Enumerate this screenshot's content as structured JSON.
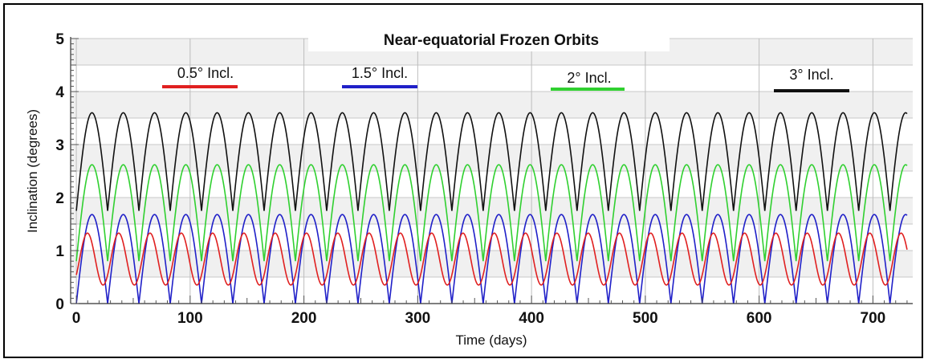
{
  "chart_data": {
    "type": "line",
    "title": "Near-equatorial Frozen Orbits",
    "xlabel": "Time (days)",
    "ylabel": "Inclination (degrees)",
    "xlim": [
      -5,
      735
    ],
    "ylim": [
      0,
      5
    ],
    "xticks": [
      "0",
      "100",
      "200",
      "300",
      "400",
      "500",
      "600",
      "700"
    ],
    "yticks": [
      "0",
      "1",
      "2",
      "3",
      "4",
      "5"
    ],
    "grid": true,
    "legend_position": "top",
    "series": [
      {
        "name": "0.5° Incl.",
        "color": "#e02020",
        "period_days": 27.5,
        "phase_days": -4,
        "min": 0.35,
        "max": 1.33,
        "shape": "sine",
        "start_day": 0,
        "end_day": 730
      },
      {
        "name": "1.5° Incl.",
        "color": "#2020c8",
        "period_days": 27.5,
        "phase_days": 0,
        "min": 0.0,
        "max": 1.68,
        "shape": "arch",
        "start_day": 0,
        "end_day": 730
      },
      {
        "name": "2° Incl.",
        "color": "#30d030",
        "period_days": 27.5,
        "phase_days": 0,
        "min": 0.8,
        "max": 2.62,
        "shape": "arch",
        "start_day": 0,
        "end_day": 730
      },
      {
        "name": "3° Incl.",
        "color": "#111111",
        "period_days": 27.5,
        "phase_days": 0,
        "min": 1.75,
        "max": 3.6,
        "shape": "arch",
        "start_day": 0,
        "end_day": 730
      }
    ]
  }
}
